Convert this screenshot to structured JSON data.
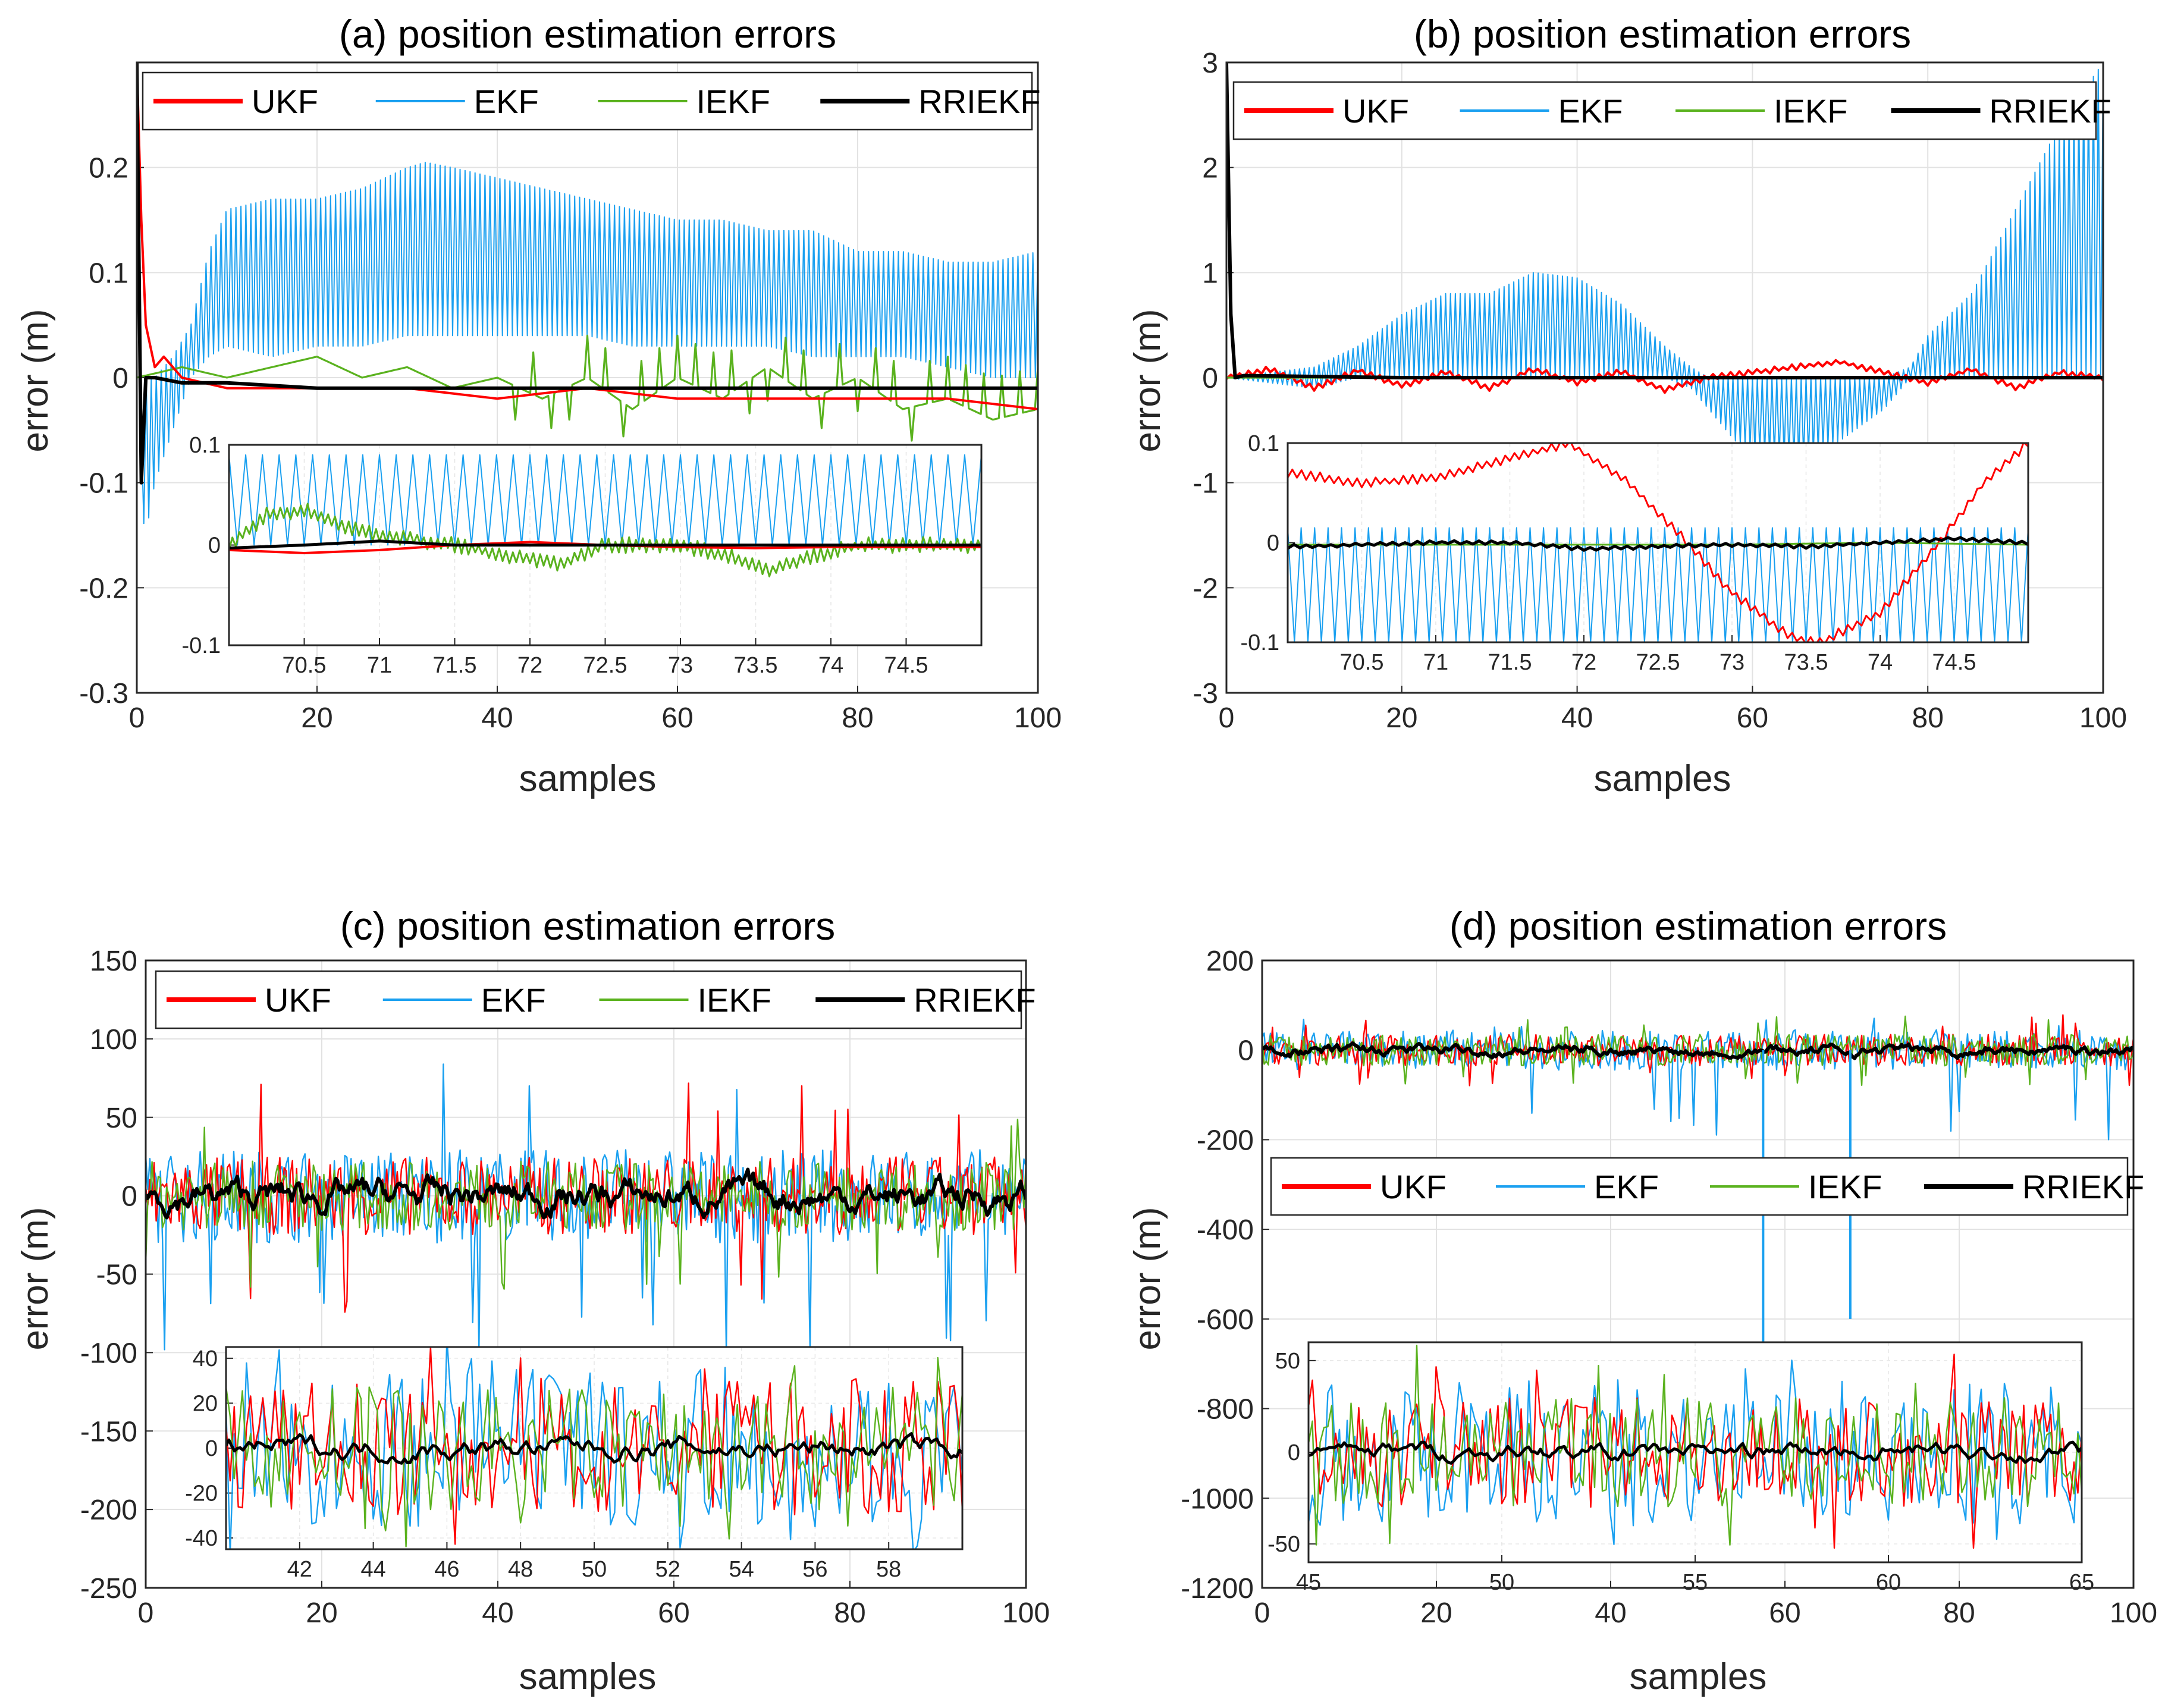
{
  "colors": {
    "UKF": "#ff0000",
    "EKF": "#1aa0f0",
    "IEKF": "#5ab21e",
    "RRIEKF": "#000000"
  },
  "chart_data": [
    {
      "id": "a",
      "type": "line",
      "title": "(a) position estimation errors",
      "xlabel": "samples",
      "ylabel": "error (m)",
      "xlim": [
        0,
        100
      ],
      "ylim": [
        -0.3,
        0.3
      ],
      "xticks": [
        "0",
        "20",
        "40",
        "60",
        "80",
        "100"
      ],
      "yticks": [
        "-0.3",
        "-0.2",
        "-0.1",
        "0",
        "0.1",
        "0.2"
      ],
      "legend": [
        "UKF",
        "EKF",
        "IEKF",
        "RRIEKF"
      ],
      "grid": true,
      "series": [
        {
          "name": "EKF",
          "x": [
            0,
            1,
            2,
            4,
            6,
            8,
            10,
            15,
            20,
            25,
            30,
            32,
            35,
            40,
            45,
            50,
            55,
            60,
            65,
            70,
            75,
            80,
            85,
            90,
            95,
            100
          ],
          "upper": [
            -0.1,
            0.0,
            0.0,
            0.02,
            0.05,
            0.12,
            0.16,
            0.17,
            0.17,
            0.18,
            0.2,
            0.205,
            0.2,
            0.19,
            0.18,
            0.17,
            0.16,
            0.15,
            0.15,
            0.14,
            0.14,
            0.12,
            0.12,
            0.11,
            0.11,
            0.12
          ],
          "lower": [
            -0.1,
            -0.15,
            -0.1,
            -0.05,
            0.0,
            0.02,
            0.03,
            0.02,
            0.03,
            0.03,
            0.04,
            0.04,
            0.04,
            0.04,
            0.04,
            0.04,
            0.03,
            0.03,
            0.03,
            0.03,
            0.02,
            0.02,
            0.02,
            0.01,
            0.0,
            0.0
          ]
        },
        {
          "name": "IEKF",
          "x": [
            0,
            5,
            10,
            15,
            20,
            25,
            30,
            35,
            40,
            45,
            50,
            55,
            60,
            65,
            70,
            75,
            80,
            85,
            90,
            95,
            100
          ],
          "y": [
            0.0,
            0.01,
            0.0,
            0.01,
            0.02,
            0.0,
            0.01,
            -0.01,
            0.0,
            -0.02,
            0.0,
            -0.03,
            0.0,
            -0.02,
            0.01,
            -0.02,
            0.0,
            -0.03,
            -0.02,
            -0.04,
            -0.03
          ]
        },
        {
          "name": "UKF",
          "x": [
            0,
            0.5,
            1,
            2,
            3,
            5,
            10,
            20,
            30,
            40,
            50,
            60,
            70,
            80,
            90,
            100
          ],
          "y": [
            0.3,
            0.15,
            0.05,
            0.01,
            0.02,
            0.0,
            -0.01,
            -0.01,
            -0.01,
            -0.02,
            -0.01,
            -0.02,
            -0.02,
            -0.02,
            -0.02,
            -0.03
          ]
        },
        {
          "name": "RRIEKF",
          "x": [
            0,
            0.5,
            1,
            2,
            5,
            10,
            20,
            30,
            40,
            50,
            60,
            70,
            80,
            90,
            100
          ],
          "y": [
            0.3,
            -0.1,
            0.0,
            0.0,
            -0.005,
            -0.005,
            -0.01,
            -0.01,
            -0.01,
            -0.01,
            -0.01,
            -0.01,
            -0.01,
            -0.01,
            -0.01
          ]
        }
      ],
      "inset": {
        "xlim": [
          70,
          75
        ],
        "ylim": [
          -0.1,
          0.1
        ],
        "xticks": [
          "70.5",
          "71",
          "71.5",
          "72",
          "72.5",
          "73",
          "73.5",
          "74",
          "74.5"
        ],
        "yticks": [
          "-0.1",
          "0",
          "0.1"
        ],
        "series": [
          {
            "name": "EKF",
            "upper": 0.09,
            "lower": 0.0
          },
          {
            "name": "IEKF",
            "x": [
              70,
              70.25,
              70.5,
              70.75,
              71,
              71.5,
              72,
              72.2,
              72.5,
              73,
              73.3,
              73.6,
              73.9,
              74.2,
              75
            ],
            "y": [
              0.0,
              0.03,
              0.035,
              0.02,
              0.01,
              0.0,
              -0.015,
              -0.02,
              0.0,
              0.0,
              -0.01,
              -0.025,
              -0.01,
              0.0,
              0.0
            ]
          },
          {
            "name": "UKF",
            "x": [
              70,
              70.5,
              71,
              71.5,
              72,
              72.5,
              73,
              73.5,
              74,
              75
            ],
            "y": [
              -0.005,
              -0.008,
              -0.005,
              0.0,
              0.003,
              0.0,
              -0.002,
              -0.003,
              -0.002,
              -0.002
            ]
          },
          {
            "name": "RRIEKF",
            "x": [
              70,
              70.5,
              71,
              71.5,
              72,
              72.5,
              73,
              73.5,
              74,
              75
            ],
            "y": [
              -0.003,
              0.0,
              0.004,
              0.0,
              0.0,
              0.0,
              0.0,
              0.0,
              0.0,
              0.0
            ]
          }
        ]
      }
    },
    {
      "id": "b",
      "type": "line",
      "title": "(b) position estimation errors",
      "xlabel": "samples",
      "ylabel": "error (m)",
      "xlim": [
        0,
        100
      ],
      "ylim": [
        -3,
        3
      ],
      "xticks": [
        "0",
        "20",
        "40",
        "60",
        "80",
        "100"
      ],
      "yticks": [
        "-3",
        "-2",
        "-1",
        "0",
        "1",
        "2",
        "3"
      ],
      "legend": [
        "UKF",
        "EKF",
        "IEKF",
        "RRIEKF"
      ],
      "grid": true,
      "series": [
        {
          "name": "EKF",
          "x": [
            0,
            5,
            10,
            15,
            20,
            25,
            30,
            35,
            40,
            45,
            50,
            53,
            55,
            58,
            60,
            65,
            70,
            75,
            78,
            80,
            85,
            90,
            95,
            100
          ],
          "upper": [
            0.0,
            0.05,
            0.1,
            0.3,
            0.6,
            0.8,
            0.8,
            1.0,
            0.95,
            0.7,
            0.3,
            0.1,
            0.0,
            0.0,
            0.0,
            0.0,
            0.0,
            0.0,
            0.1,
            0.4,
            0.8,
            1.6,
            2.4,
            3.0
          ],
          "lower": [
            0.0,
            -0.05,
            -0.1,
            0.0,
            0.0,
            0.0,
            0.0,
            0.0,
            0.0,
            0.0,
            0.0,
            -0.1,
            -0.3,
            -0.6,
            -0.7,
            -0.8,
            -0.6,
            -0.3,
            0.0,
            0.0,
            0.0,
            0.0,
            0.0,
            0.0
          ]
        },
        {
          "name": "UKF",
          "x": [
            0,
            5,
            10,
            15,
            20,
            25,
            30,
            35,
            40,
            45,
            50,
            55,
            60,
            65,
            70,
            75,
            80,
            85,
            90,
            95,
            100
          ],
          "y": [
            0.0,
            0.08,
            -0.1,
            0.07,
            -0.08,
            0.05,
            -0.1,
            0.08,
            -0.05,
            0.06,
            -0.12,
            0.0,
            0.05,
            0.1,
            0.15,
            0.05,
            -0.05,
            0.08,
            -0.1,
            0.05,
            0.0
          ]
        },
        {
          "name": "IEKF",
          "x": [
            0,
            20,
            40,
            60,
            80,
            100
          ],
          "y": [
            0.0,
            0.0,
            0.0,
            0.0,
            0.0,
            0.0
          ]
        },
        {
          "name": "RRIEKF",
          "x": [
            0,
            0.5,
            1,
            2,
            20,
            40,
            60,
            80,
            100
          ],
          "y": [
            3.0,
            0.6,
            0.0,
            0.02,
            0.0,
            0.0,
            0.0,
            0.0,
            0.0
          ]
        }
      ],
      "inset": {
        "xlim": [
          70,
          75
        ],
        "ylim": [
          -0.1,
          0.1
        ],
        "xticks": [
          "70.5",
          "71",
          "71.5",
          "72",
          "72.5",
          "73",
          "73.5",
          "74",
          "74.5"
        ],
        "yticks": [
          "-0.1",
          "0",
          "0.1"
        ],
        "series": [
          {
            "name": "EKF",
            "upper": 0.015,
            "lower": -0.1
          },
          {
            "name": "UKF",
            "x": [
              70,
              70.5,
              71,
              71.5,
              71.9,
              72.3,
              72.7,
              73.0,
              73.4,
              73.6,
              74.0,
              74.4,
              74.7,
              75
            ],
            "y": [
              0.07,
              0.06,
              0.065,
              0.085,
              0.1,
              0.06,
              0.0,
              -0.05,
              -0.095,
              -0.1,
              -0.07,
              0.0,
              0.06,
              0.1
            ]
          },
          {
            "name": "IEKF",
            "x": [
              70,
              72,
              73,
              74,
              75
            ],
            "y": [
              -0.002,
              -0.002,
              -0.002,
              0.0,
              -0.002
            ]
          },
          {
            "name": "RRIEKF",
            "x": [
              70,
              70.5,
              71,
              71.5,
              72,
              72.5,
              73,
              73.5,
              74,
              74.5,
              75
            ],
            "y": [
              -0.004,
              -0.002,
              0.0,
              0.0,
              -0.006,
              -0.004,
              -0.002,
              -0.004,
              0.0,
              0.004,
              0.0
            ]
          }
        ]
      }
    },
    {
      "id": "c",
      "type": "line",
      "title": "(c) position estimation errors",
      "xlabel": "samples",
      "ylabel": "error (m)",
      "xlim": [
        0,
        100
      ],
      "ylim": [
        -250,
        150
      ],
      "xticks": [
        "0",
        "20",
        "40",
        "60",
        "80",
        "100"
      ],
      "yticks": [
        "-250",
        "-200",
        "-150",
        "-100",
        "-50",
        "0",
        "50",
        "100",
        "150"
      ],
      "legend": [
        "UKF",
        "EKF",
        "IEKF",
        "RRIEKF"
      ],
      "grid": true,
      "noise": [
        {
          "name": "EKF",
          "amp": 30,
          "spike": 100,
          "min": -100
        },
        {
          "name": "UKF",
          "amp": 25,
          "spike": 80,
          "min": -80
        },
        {
          "name": "IEKF",
          "amp": 22,
          "spike": 60,
          "min": -60
        },
        {
          "name": "RRIEKF",
          "amp": 12,
          "spike": 25,
          "min": -40
        }
      ],
      "inset": {
        "xlim": [
          40,
          60
        ],
        "ylim": [
          -45,
          45
        ],
        "xticks": [
          "42",
          "44",
          "46",
          "48",
          "50",
          "52",
          "54",
          "56",
          "58"
        ],
        "yticks": [
          "-40",
          "-20",
          "0",
          "20",
          "40"
        ]
      }
    },
    {
      "id": "d",
      "type": "line",
      "title": "(d) position estimation errors",
      "xlabel": "samples",
      "ylabel": "error (m)",
      "xlim": [
        0,
        100
      ],
      "ylim": [
        -1200,
        200
      ],
      "xticks": [
        "0",
        "20",
        "40",
        "60",
        "80",
        "100"
      ],
      "yticks": [
        "-1200",
        "-1000",
        "-800",
        "-600",
        "-400",
        "-200",
        "0",
        "200"
      ],
      "legend": [
        "UKF",
        "EKF",
        "IEKF",
        "RRIEKF"
      ],
      "grid": true,
      "noise": [
        {
          "name": "EKF",
          "amp": 45,
          "spike": 80,
          "min": -200
        },
        {
          "name": "UKF",
          "amp": 35,
          "spike": 80,
          "min": -80
        },
        {
          "name": "IEKF",
          "amp": 35,
          "spike": 80,
          "min": -80
        },
        {
          "name": "RRIEKF",
          "amp": 14,
          "spike": 40,
          "min": -45
        }
      ],
      "ekf_spikes": [
        {
          "x": 57.5,
          "y": -650
        },
        {
          "x": 67.5,
          "y": -600
        }
      ],
      "inset": {
        "xlim": [
          45,
          65
        ],
        "ylim": [
          -60,
          60
        ],
        "xticks": [
          "45",
          "50",
          "55",
          "60",
          "65"
        ],
        "yticks": [
          "-50",
          "0",
          "50"
        ]
      }
    }
  ]
}
